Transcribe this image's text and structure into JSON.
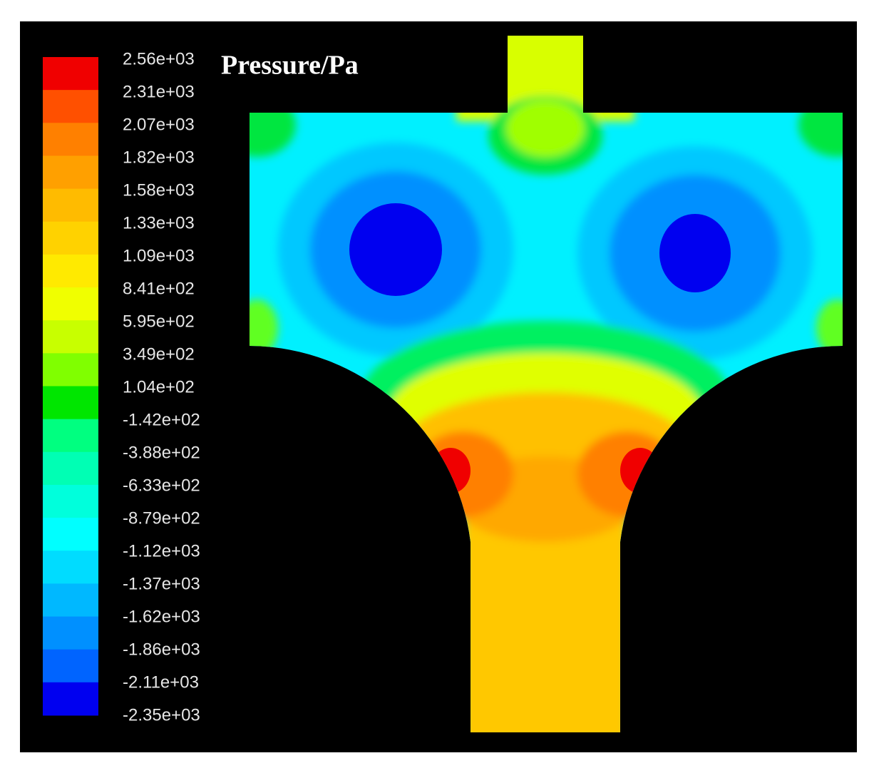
{
  "title": "Pressure/Pa",
  "colorbar": {
    "labels": [
      "2.56e+03",
      "2.31e+03",
      "2.07e+03",
      "1.82e+03",
      "1.58e+03",
      "1.33e+03",
      "1.09e+03",
      "8.41e+02",
      "5.95e+02",
      "3.49e+02",
      "1.04e+02",
      "-1.42e+02",
      "-3.88e+02",
      "-6.33e+02",
      "-8.79e+02",
      "-1.12e+03",
      "-1.37e+03",
      "-1.62e+03",
      "-1.86e+03",
      "-2.11e+03",
      "-2.35e+03"
    ]
  }
}
